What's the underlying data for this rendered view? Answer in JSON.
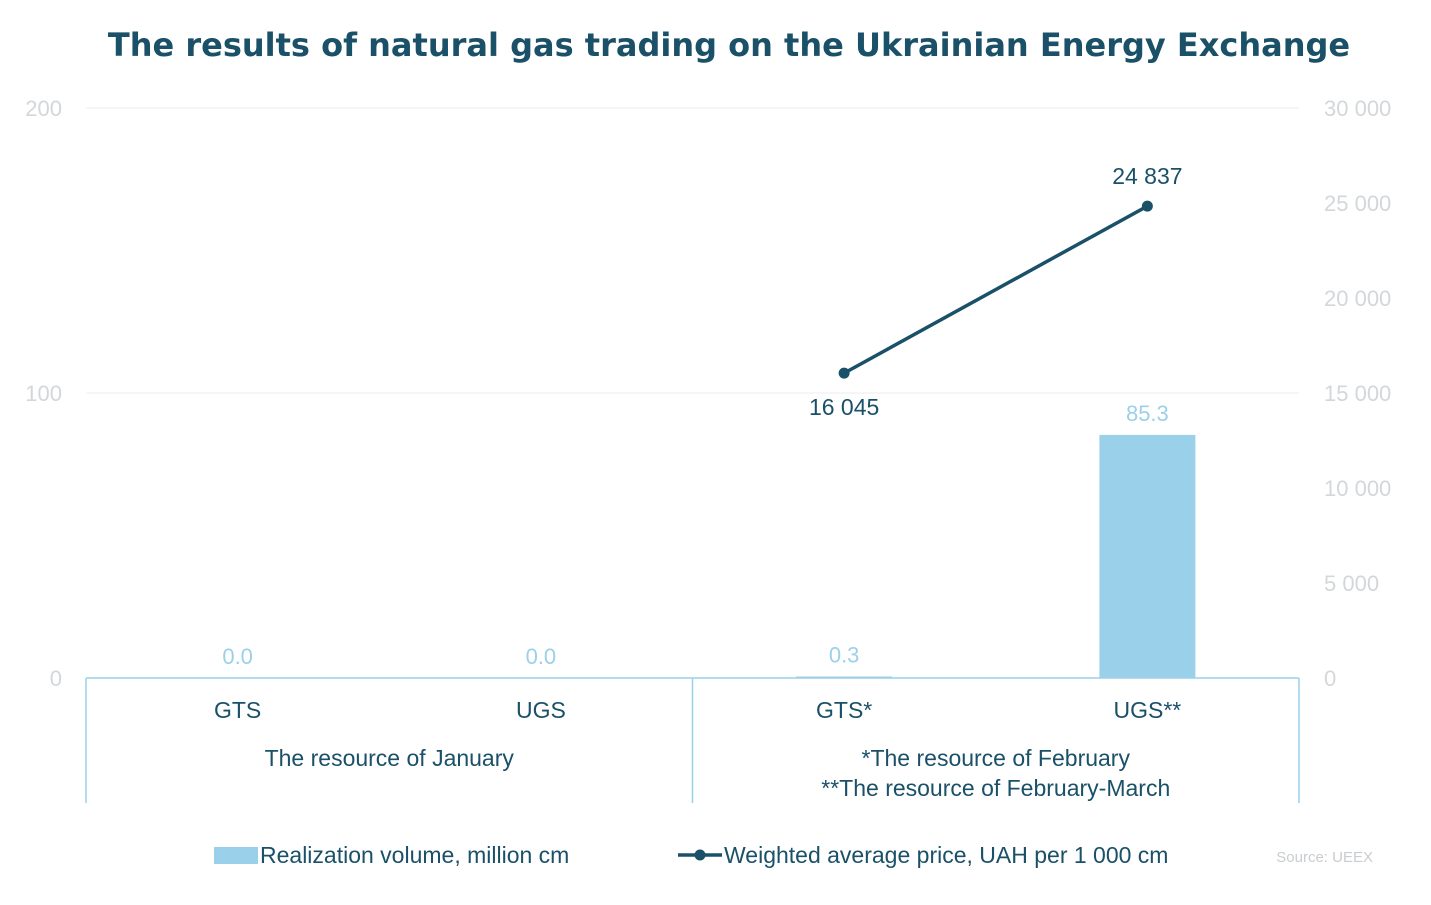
{
  "chart_data": {
    "type": "bar",
    "title": "The results of natural gas trading on the Ukrainian Energy Exchange",
    "categories": [
      "GTS",
      "UGS",
      "GTS*",
      "UGS**"
    ],
    "groups": [
      {
        "label_lines": [
          "The resource of January"
        ],
        "categories": [
          0,
          1
        ]
      },
      {
        "label_lines": [
          "*The resource of February",
          "**The resource of February-March"
        ],
        "categories": [
          2,
          3
        ]
      }
    ],
    "series": [
      {
        "name": "Realization volume, million cm",
        "type": "bar",
        "axis": "left",
        "color": "#9bd0ea",
        "values": [
          0.0,
          0.0,
          0.3,
          85.3
        ],
        "labels": [
          "0.0",
          "0.0",
          "0.3",
          "85.3"
        ]
      },
      {
        "name": "Weighted average price, UAH per 1 000 cm",
        "type": "line",
        "axis": "right",
        "color": "#1a5068",
        "values": [
          null,
          null,
          16045,
          24837
        ],
        "labels": [
          "",
          "",
          "16 045",
          "24 837"
        ]
      }
    ],
    "y_left": {
      "min": 0,
      "max": 200,
      "ticks": [
        0,
        100,
        200
      ],
      "tick_labels": [
        "0",
        "100",
        "200"
      ]
    },
    "y_right": {
      "min": 0,
      "max": 30000,
      "ticks": [
        0,
        5000,
        10000,
        15000,
        20000,
        25000,
        30000
      ],
      "tick_labels": [
        "0",
        "5 000",
        "10 000",
        "15 000",
        "20 000",
        "25 000",
        "30 000"
      ]
    },
    "grid": true,
    "legend_position": "bottom",
    "source": "Source: UEEX"
  }
}
